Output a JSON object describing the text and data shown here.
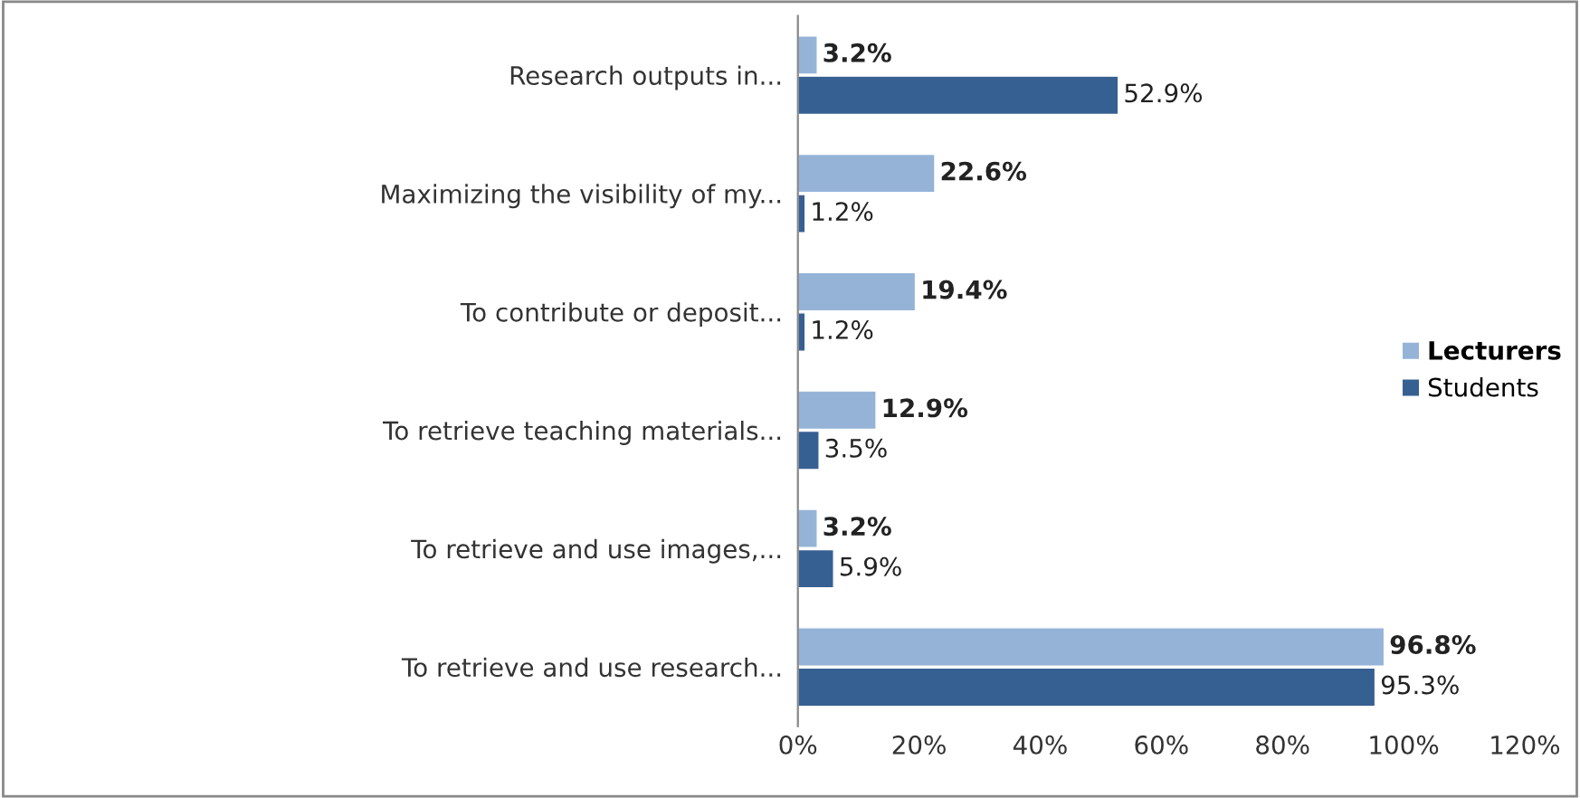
{
  "chart_data": {
    "type": "bar",
    "orientation": "horizontal",
    "categories": [
      "Research outputs in...",
      "Maximizing the visibility of my...",
      "To contribute or deposit...",
      "To retrieve teaching materials...",
      "To retrieve and use images,...",
      "To retrieve and use research..."
    ],
    "series": [
      {
        "name": "Lecturers",
        "color": "#95b3d7",
        "values": [
          3.2,
          22.6,
          19.4,
          12.9,
          3.2,
          96.8
        ],
        "value_labels": [
          "3.2%",
          "22.6%",
          "19.4%",
          "12.9%",
          "3.2%",
          "96.8%"
        ]
      },
      {
        "name": "Students",
        "color": "#376092",
        "values": [
          52.9,
          1.2,
          1.2,
          3.5,
          5.9,
          95.3
        ],
        "value_labels": [
          "52.9%",
          "1.2%",
          "1.2%",
          "3.5%",
          "5.9%",
          "95.3%"
        ]
      }
    ],
    "xlim": [
      0,
      120
    ],
    "xticks": [
      {
        "value": 0,
        "label": "0%"
      },
      {
        "value": 20,
        "label": "20%"
      },
      {
        "value": 40,
        "label": "40%"
      },
      {
        "value": 60,
        "label": "60%"
      },
      {
        "value": 80,
        "label": "80%"
      },
      {
        "value": 100,
        "label": "100%"
      },
      {
        "value": 120,
        "label": "120%"
      }
    ],
    "grid": false,
    "legend": "right"
  }
}
